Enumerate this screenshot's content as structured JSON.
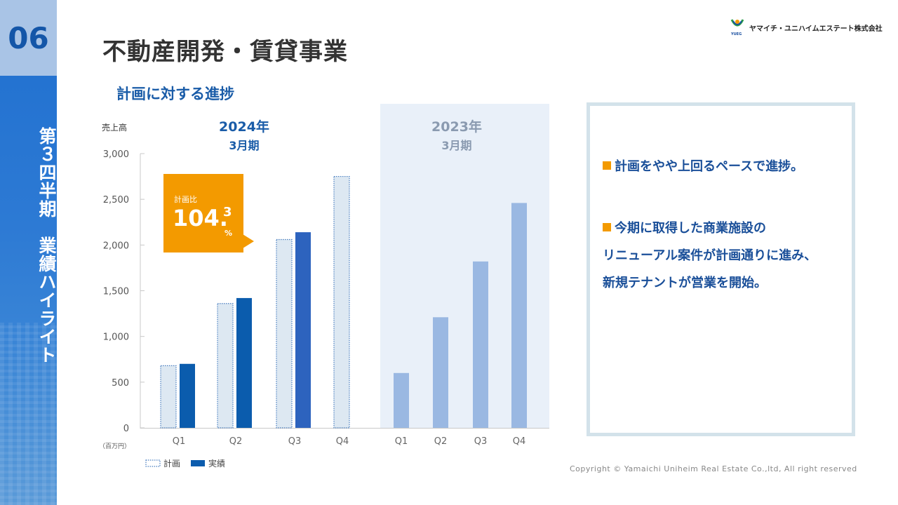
{
  "sidebar": {
    "section_number": "06",
    "vertical_text": "第３四半期　業績ハイライト"
  },
  "header": {
    "title": "不動産開発・賃貸事業",
    "subtitle": "計画に対する進捗",
    "company": "ヤマイチ・ユニハイムエステート株式会社",
    "logo_text": "YUEG"
  },
  "callout": {
    "label": "計画比",
    "value_main": "104.",
    "value_decimal": "3",
    "unit": "%",
    "color": "#f39a00"
  },
  "panel": {
    "points": [
      {
        "lines": [
          "計画をやや上回るペースで進捗。"
        ]
      },
      {
        "lines": [
          "今期に取得した商業施設の",
          "リニューアル案件が計画通りに進み、",
          "新規テナントが営業を開始。"
        ]
      }
    ]
  },
  "copyright": "Copyright  © Yamaichi  Uniheim  Real  Estate Co.,ltd,  All  right  reserved",
  "chart_data": {
    "type": "bar",
    "ylabel": "売上高",
    "unit_label": "（百万円）",
    "ylim": [
      0,
      3000
    ],
    "yticks": [
      0,
      500,
      1000,
      1500,
      2000,
      2500,
      3000
    ],
    "ytick_labels": [
      "0",
      "500",
      "1,000",
      "1,500",
      "2,000",
      "2,500",
      "3,000"
    ],
    "groups": [
      {
        "title": "2024年",
        "subtitle": "3月期",
        "categories": [
          "Q1",
          "Q2",
          "Q3",
          "Q4"
        ],
        "series": [
          {
            "name": "計画",
            "style": "dotted",
            "values": [
              680,
              1360,
              2060,
              2750
            ]
          },
          {
            "name": "実績",
            "style": "solid",
            "color": "#0b5cad",
            "values": [
              700,
              1420,
              2140,
              null
            ]
          }
        ]
      },
      {
        "title": "2023年",
        "subtitle": "3月期",
        "categories": [
          "Q1",
          "Q2",
          "Q3",
          "Q4"
        ],
        "series": [
          {
            "name": "実績",
            "color": "#9ab8e2",
            "values": [
              600,
              1210,
              1820,
              2460
            ]
          }
        ]
      }
    ],
    "legend": [
      {
        "name": "計画",
        "style": "dotted"
      },
      {
        "name": "実績",
        "style": "solid",
        "color": "#0b5cad"
      }
    ]
  }
}
